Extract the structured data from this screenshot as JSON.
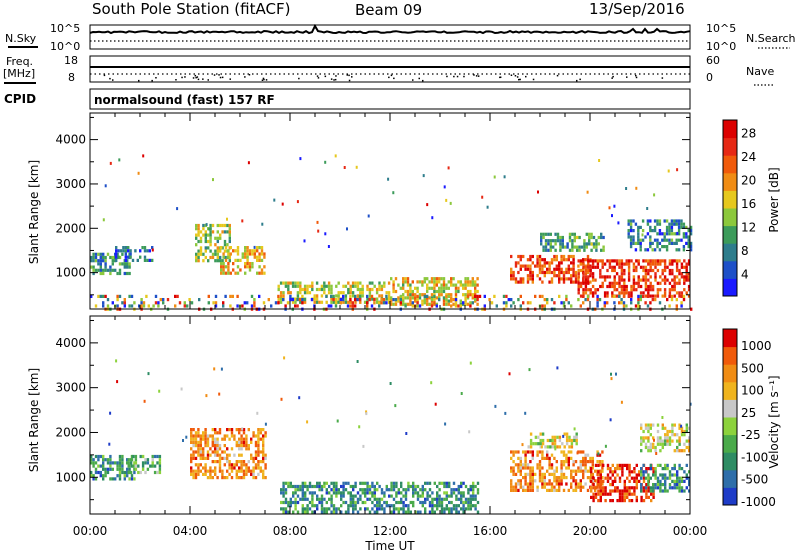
{
  "header": {
    "station": "South Pole Station (fitACF)",
    "beam": "Beam 09",
    "date": "13/Sep/2016"
  },
  "aux_panels": {
    "nsky_label": "N.Sky",
    "nsky_tick_top": "10^5",
    "nsky_tick_bottom": "10^0",
    "nsearch_label": "N.Search",
    "nsearch_tick_top": "10^5",
    "nsearch_tick_bottom": "10^0",
    "freq_label": "Freq.",
    "freq_unit": "[MHz]",
    "freq_tick_top": "18",
    "freq_tick_bottom": "8",
    "nave_label": "Nave",
    "nave_tick_top": "60",
    "nave_tick_bottom": "0",
    "cpid_label": "CPID",
    "cpid_value": "normalsound (fast) 157 RF"
  },
  "chart_data": [
    {
      "type": "heatmap",
      "panel": "power",
      "ylabel": "Slant Range [km]",
      "xlabel": "",
      "x_ticks": [
        "00:00",
        "04:00",
        "08:00",
        "12:00",
        "16:00",
        "20:00",
        "00:00"
      ],
      "xlim_hours": [
        0,
        24
      ],
      "y_ticks": [
        1000,
        2000,
        3000,
        4000
      ],
      "ylim": [
        180,
        4600
      ],
      "colorbar": {
        "label": "Power [dB]",
        "ticks": [
          "4",
          "8",
          "12",
          "16",
          "20",
          "24",
          "28"
        ],
        "colors": [
          "#1a1aff",
          "#1e50c8",
          "#2e7d8c",
          "#3c9b5a",
          "#8cc83c",
          "#e6c81e",
          "#f08c14",
          "#f05a0a",
          "#e62814",
          "#dc0000"
        ]
      },
      "regions": [
        {
          "t0": 0.0,
          "t1": 1.6,
          "r0": 950,
          "r1": 1450,
          "val": 0.3
        },
        {
          "t0": 1.0,
          "t1": 2.5,
          "r0": 1300,
          "r1": 1600,
          "val": 0.2
        },
        {
          "t0": 4.2,
          "t1": 5.6,
          "r0": 1300,
          "r1": 2100,
          "val": 0.45
        },
        {
          "t0": 5.2,
          "t1": 7.0,
          "r0": 1000,
          "r1": 1600,
          "val": 0.6
        },
        {
          "t0": 7.5,
          "t1": 12.0,
          "r0": 300,
          "r1": 800,
          "val": 0.5
        },
        {
          "t0": 12.0,
          "t1": 15.5,
          "r0": 300,
          "r1": 900,
          "val": 0.55
        },
        {
          "t0": 16.8,
          "t1": 20.0,
          "r0": 800,
          "r1": 1400,
          "val": 0.8
        },
        {
          "t0": 19.5,
          "t1": 24.0,
          "r0": 500,
          "r1": 1300,
          "val": 0.85
        },
        {
          "t0": 18.0,
          "t1": 20.5,
          "r0": 1500,
          "r1": 1900,
          "val": 0.35
        },
        {
          "t0": 21.5,
          "t1": 24.0,
          "r0": 1500,
          "r1": 2200,
          "val": 0.25
        },
        {
          "t0": 0.0,
          "t1": 24.0,
          "r0": 200,
          "r1": 500,
          "val": 0.5
        }
      ]
    },
    {
      "type": "heatmap",
      "panel": "velocity",
      "ylabel": "Slant Range [km]",
      "xlabel": "Time UT",
      "x_ticks": [
        "00:00",
        "04:00",
        "08:00",
        "12:00",
        "16:00",
        "20:00",
        "00:00"
      ],
      "xlim_hours": [
        0,
        24
      ],
      "y_ticks": [
        1000,
        2000,
        3000,
        4000
      ],
      "ylim": [
        180,
        4600
      ],
      "colorbar": {
        "label": "Velocity [m s⁻¹]",
        "ticks": [
          "1000",
          "500",
          "100",
          "25",
          "-25",
          "-100",
          "-500",
          "-1000"
        ],
        "colors": [
          "#1e3cc8",
          "#2e6eaa",
          "#2e8c64",
          "#4aaa4a",
          "#8cd23c",
          "#c8c8c8",
          "#f0b41e",
          "#f08c14",
          "#f05a0a",
          "#dc0000"
        ]
      },
      "regions": [
        {
          "t0": 0.0,
          "t1": 1.8,
          "r0": 950,
          "r1": 1500,
          "val": 0.25
        },
        {
          "t0": 1.5,
          "t1": 2.8,
          "r0": 1100,
          "r1": 1500,
          "val": 0.35
        },
        {
          "t0": 4.0,
          "t1": 7.0,
          "r0": 1000,
          "r1": 2100,
          "val": 0.75
        },
        {
          "t0": 7.6,
          "t1": 15.5,
          "r0": 200,
          "r1": 900,
          "val": 0.25
        },
        {
          "t0": 16.8,
          "t1": 20.5,
          "r0": 700,
          "r1": 1600,
          "val": 0.75
        },
        {
          "t0": 17.5,
          "t1": 19.5,
          "r0": 1700,
          "r1": 2000,
          "val": 0.55
        },
        {
          "t0": 20.0,
          "t1": 22.5,
          "r0": 500,
          "r1": 1300,
          "val": 0.92
        },
        {
          "t0": 22.0,
          "t1": 24.0,
          "r0": 700,
          "r1": 1300,
          "val": 0.25
        },
        {
          "t0": 22.0,
          "t1": 24.0,
          "r0": 1600,
          "r1": 2200,
          "val": 0.55
        }
      ]
    }
  ]
}
